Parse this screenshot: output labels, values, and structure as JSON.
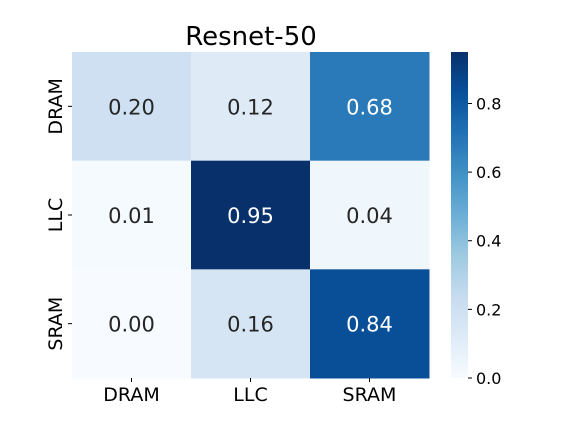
{
  "chart_data": {
    "type": "heatmap",
    "title": "Resnet-50",
    "x_categories": [
      "DRAM",
      "LLC",
      "SRAM"
    ],
    "y_categories": [
      "DRAM",
      "LLC",
      "SRAM"
    ],
    "values": [
      [
        0.2,
        0.12,
        0.68
      ],
      [
        0.01,
        0.95,
        0.04
      ],
      [
        0.0,
        0.16,
        0.84
      ]
    ],
    "value_labels": [
      [
        "0.20",
        "0.12",
        "0.68"
      ],
      [
        "0.01",
        "0.95",
        "0.04"
      ],
      [
        "0.00",
        "0.16",
        "0.84"
      ]
    ],
    "colormap": "Blues",
    "vmin": 0.0,
    "vmax": 0.95,
    "colorbar_ticks": [
      0.0,
      0.2,
      0.4,
      0.6,
      0.8
    ],
    "colorbar_tick_labels": [
      "0.0",
      "0.2",
      "0.4",
      "0.6",
      "0.8"
    ]
  }
}
